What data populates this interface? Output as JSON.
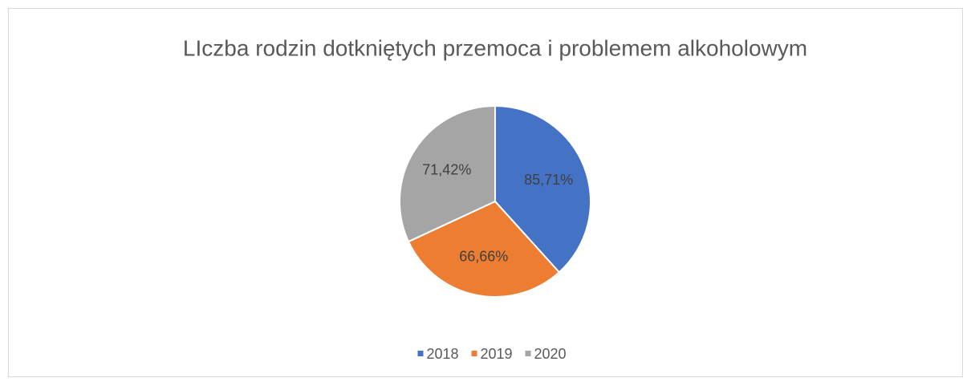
{
  "chart_data": {
    "type": "pie",
    "title": "LIczba rodzin dotkniętych przemoca i problemem alkoholowym",
    "categories": [
      "2018",
      "2019",
      "2020"
    ],
    "values": [
      85.71,
      66.66,
      71.42
    ],
    "value_labels": [
      "85,71%",
      "66,66%",
      "71,42%"
    ],
    "colors": [
      "#4472c4",
      "#ed7d31",
      "#a5a5a5"
    ],
    "legend": "bottom"
  }
}
